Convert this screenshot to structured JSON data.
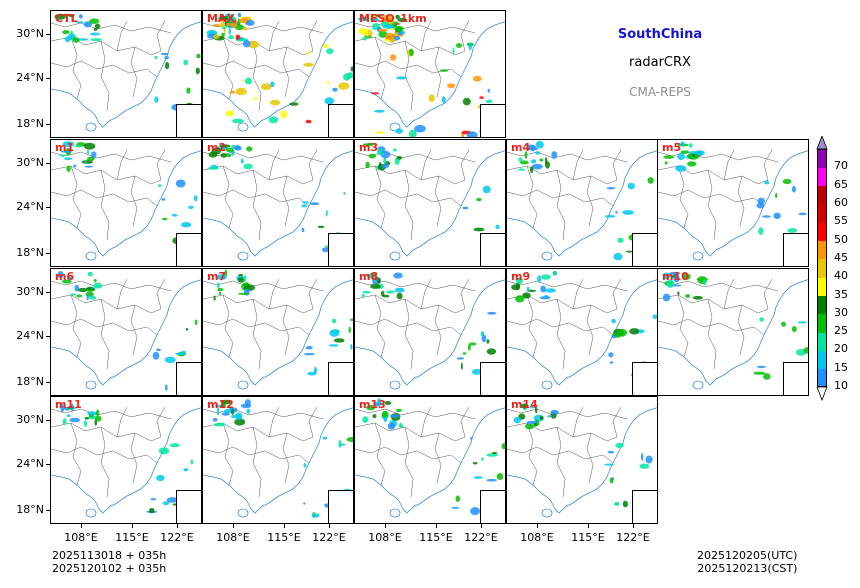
{
  "figure": {
    "region": "SouthChina",
    "variable": "radarCRX",
    "system": "CMA-REPS"
  },
  "panels": [
    {
      "label": "CTL"
    },
    {
      "label": "MAX"
    },
    {
      "label": "MESO_1km"
    },
    {
      "label": "m1"
    },
    {
      "label": "m2"
    },
    {
      "label": "m3"
    },
    {
      "label": "m4"
    },
    {
      "label": "m5"
    },
    {
      "label": "m6"
    },
    {
      "label": "m7"
    },
    {
      "label": "m8"
    },
    {
      "label": "m9"
    },
    {
      "label": "m10"
    },
    {
      "label": "m11"
    },
    {
      "label": "m12"
    },
    {
      "label": "m13"
    },
    {
      "label": "m14"
    }
  ],
  "axes": {
    "lat_labels": [
      "30°N",
      "24°N",
      "18°N"
    ],
    "lon_labels": [
      "108°E",
      "115°E",
      "122°E"
    ]
  },
  "colorbar": {
    "levels": [
      "10",
      "15",
      "20",
      "25",
      "30",
      "35",
      "40",
      "45",
      "50",
      "55",
      "60",
      "65",
      "70"
    ],
    "colors": [
      "#1e90ff",
      "#00c8f0",
      "#00e6a0",
      "#00c000",
      "#008000",
      "#ffff00",
      "#e6c800",
      "#ff9600",
      "#ff0000",
      "#d20000",
      "#c00000",
      "#ff00f0",
      "#9600b4",
      "#a08cd2"
    ]
  },
  "footer": {
    "init_utc": "2025113018  +  035h",
    "init_cst": "2025120102  +  035h",
    "valid_utc": "2025120205(UTC)",
    "valid_cst": "2025120213(CST)"
  }
}
